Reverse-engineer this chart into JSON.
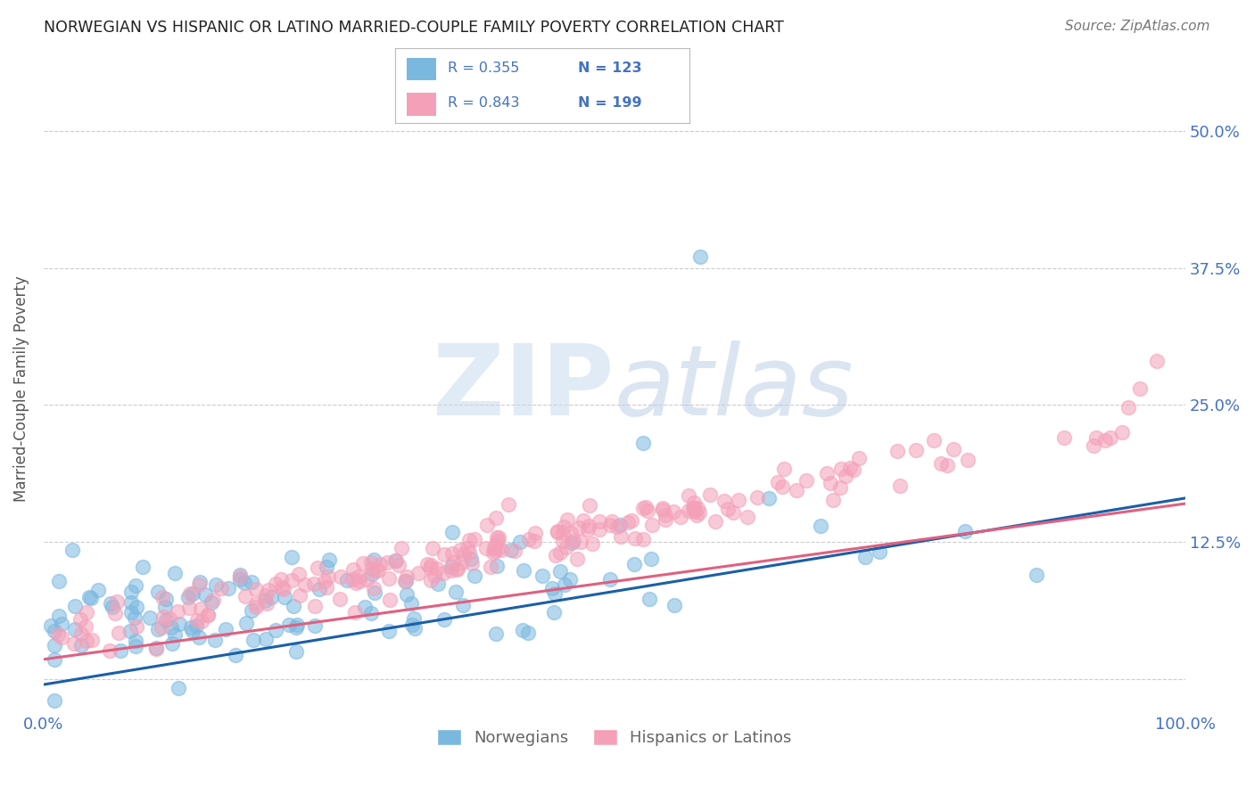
{
  "title": "NORWEGIAN VS HISPANIC OR LATINO MARRIED-COUPLE FAMILY POVERTY CORRELATION CHART",
  "source": "Source: ZipAtlas.com",
  "ylabel_label": "Married-Couple Family Poverty",
  "ytick_labels": [
    "",
    "12.5%",
    "25.0%",
    "37.5%",
    "50.0%"
  ],
  "ytick_values": [
    0,
    0.125,
    0.25,
    0.375,
    0.5
  ],
  "xlim": [
    0,
    1.0
  ],
  "ylim": [
    -0.03,
    0.56
  ],
  "blue_scatter_color": "#7bb8e0",
  "pink_scatter_color": "#f4a0b8",
  "blue_line_color": "#1a5fa8",
  "pink_line_color": "#e06080",
  "axis_color": "#4472c4",
  "watermark_color": "#d0dff0",
  "background_color": "#ffffff",
  "grid_color": "#cccccc",
  "title_color": "#222222",
  "source_color": "#777777",
  "legend_text_color": "#4472c4",
  "bottom_legend_color": "#666666",
  "blue_R": 0.355,
  "blue_N": 123,
  "pink_R": 0.843,
  "pink_N": 199,
  "blue_line_start_y": -0.005,
  "blue_line_end_y": 0.165,
  "pink_line_start_y": 0.018,
  "pink_line_end_y": 0.16
}
